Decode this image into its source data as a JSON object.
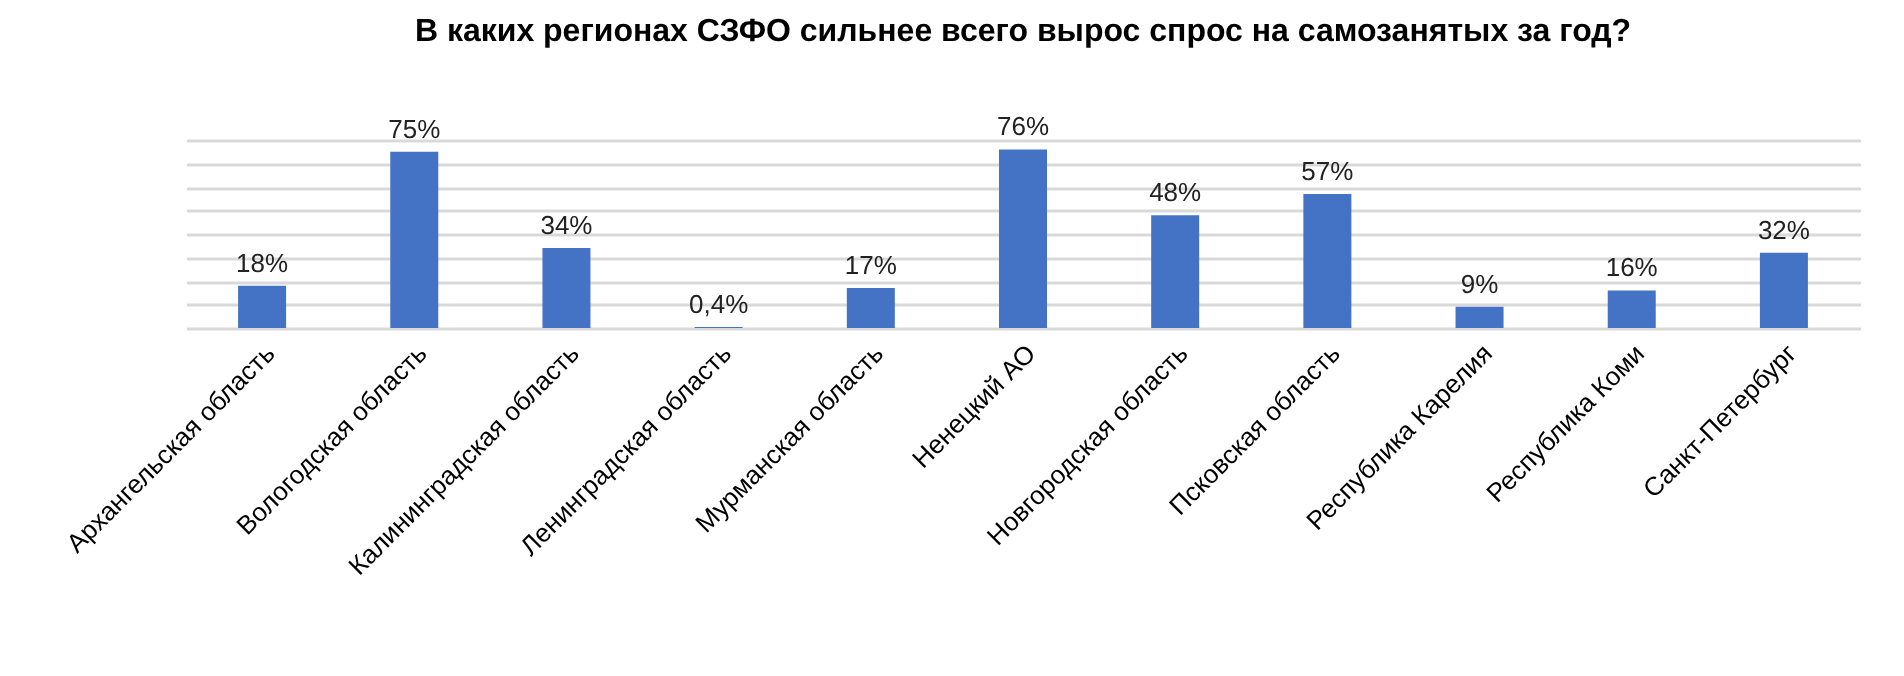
{
  "chart_data": {
    "type": "bar",
    "title": "В каких регионах СЗФО сильнее всего вырос спрос на самозанятых за год?",
    "categories": [
      "Архангельская область",
      "Вологодская область",
      "Калининградская область",
      "Ленинградская область",
      "Мурманская область",
      "Ненецкий АО",
      "Новгородская область",
      "Псковская область",
      "Республика Карелия",
      "Республика Коми",
      "Санкт-Петербург"
    ],
    "values": [
      18,
      75,
      34,
      0.4,
      17,
      76,
      48,
      57,
      9,
      16,
      32
    ],
    "value_labels": [
      "18%",
      "75%",
      "34%",
      "0,4%",
      "17%",
      "76%",
      "48%",
      "57%",
      "9%",
      "16%",
      "32%"
    ],
    "color": "#4472c4",
    "grid": "y",
    "tick_labels": "x"
  }
}
